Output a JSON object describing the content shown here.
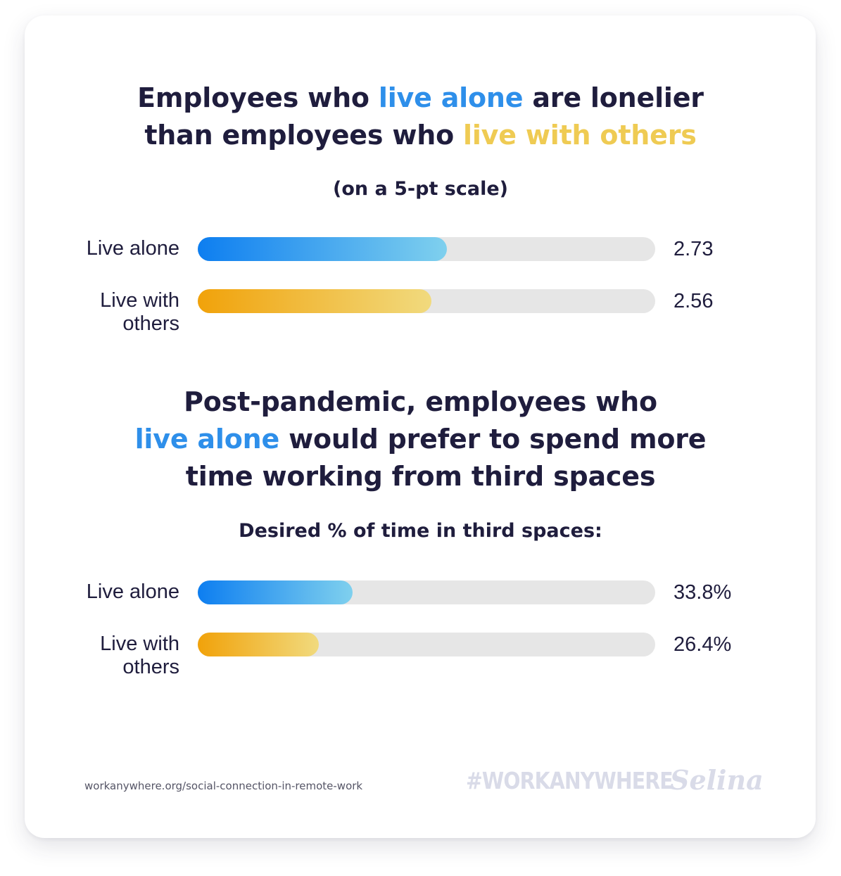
{
  "chart_data": [
    {
      "type": "bar",
      "orientation": "horizontal",
      "title_parts": [
        {
          "text": "Employees who ",
          "color": "dark"
        },
        {
          "text": "live alone",
          "color": "blue"
        },
        {
          "text": " are lonelier",
          "color": "dark",
          "break_after": true
        },
        {
          "text": "than employees who ",
          "color": "dark"
        },
        {
          "text": "live with others",
          "color": "yellow"
        }
      ],
      "subtitle": "(on a 5-pt scale)",
      "xlim": [
        0,
        5
      ],
      "categories": [
        "Live alone",
        "Live with others"
      ],
      "values": [
        2.73,
        2.56
      ],
      "value_labels": [
        "2.73",
        "2.56"
      ],
      "fill_ratios": [
        0.545,
        0.51
      ]
    },
    {
      "type": "bar",
      "orientation": "horizontal",
      "title_parts": [
        {
          "text": "Post-pandemic, employees who",
          "color": "dark",
          "break_after": true
        },
        {
          "text": "live alone",
          "color": "blue"
        },
        {
          "text": " would prefer to spend more",
          "color": "dark",
          "break_after": true
        },
        {
          "text": "time working from third spaces",
          "color": "dark"
        }
      ],
      "subtitle": "Desired % of time in third spaces:",
      "xlim": [
        0,
        100
      ],
      "categories": [
        "Live alone",
        "Live with others"
      ],
      "values": [
        33.8,
        26.4
      ],
      "value_labels": [
        "33.8%",
        "26.4%"
      ],
      "fill_ratios": [
        0.338,
        0.264
      ]
    }
  ],
  "labels": {
    "live_alone": "Live alone",
    "live_with_line1": "Live with",
    "live_with_line2": "others"
  },
  "colors": {
    "dark": "#1f1d3d",
    "blue": "#2e8fea",
    "yellow": "#efcb53",
    "track": "#e6e6e6"
  },
  "footer": {
    "source": "workanywhere.org/social-connection-in-remote-work",
    "hashtag": "#WORKANYWHERE",
    "brand": "Selina"
  }
}
